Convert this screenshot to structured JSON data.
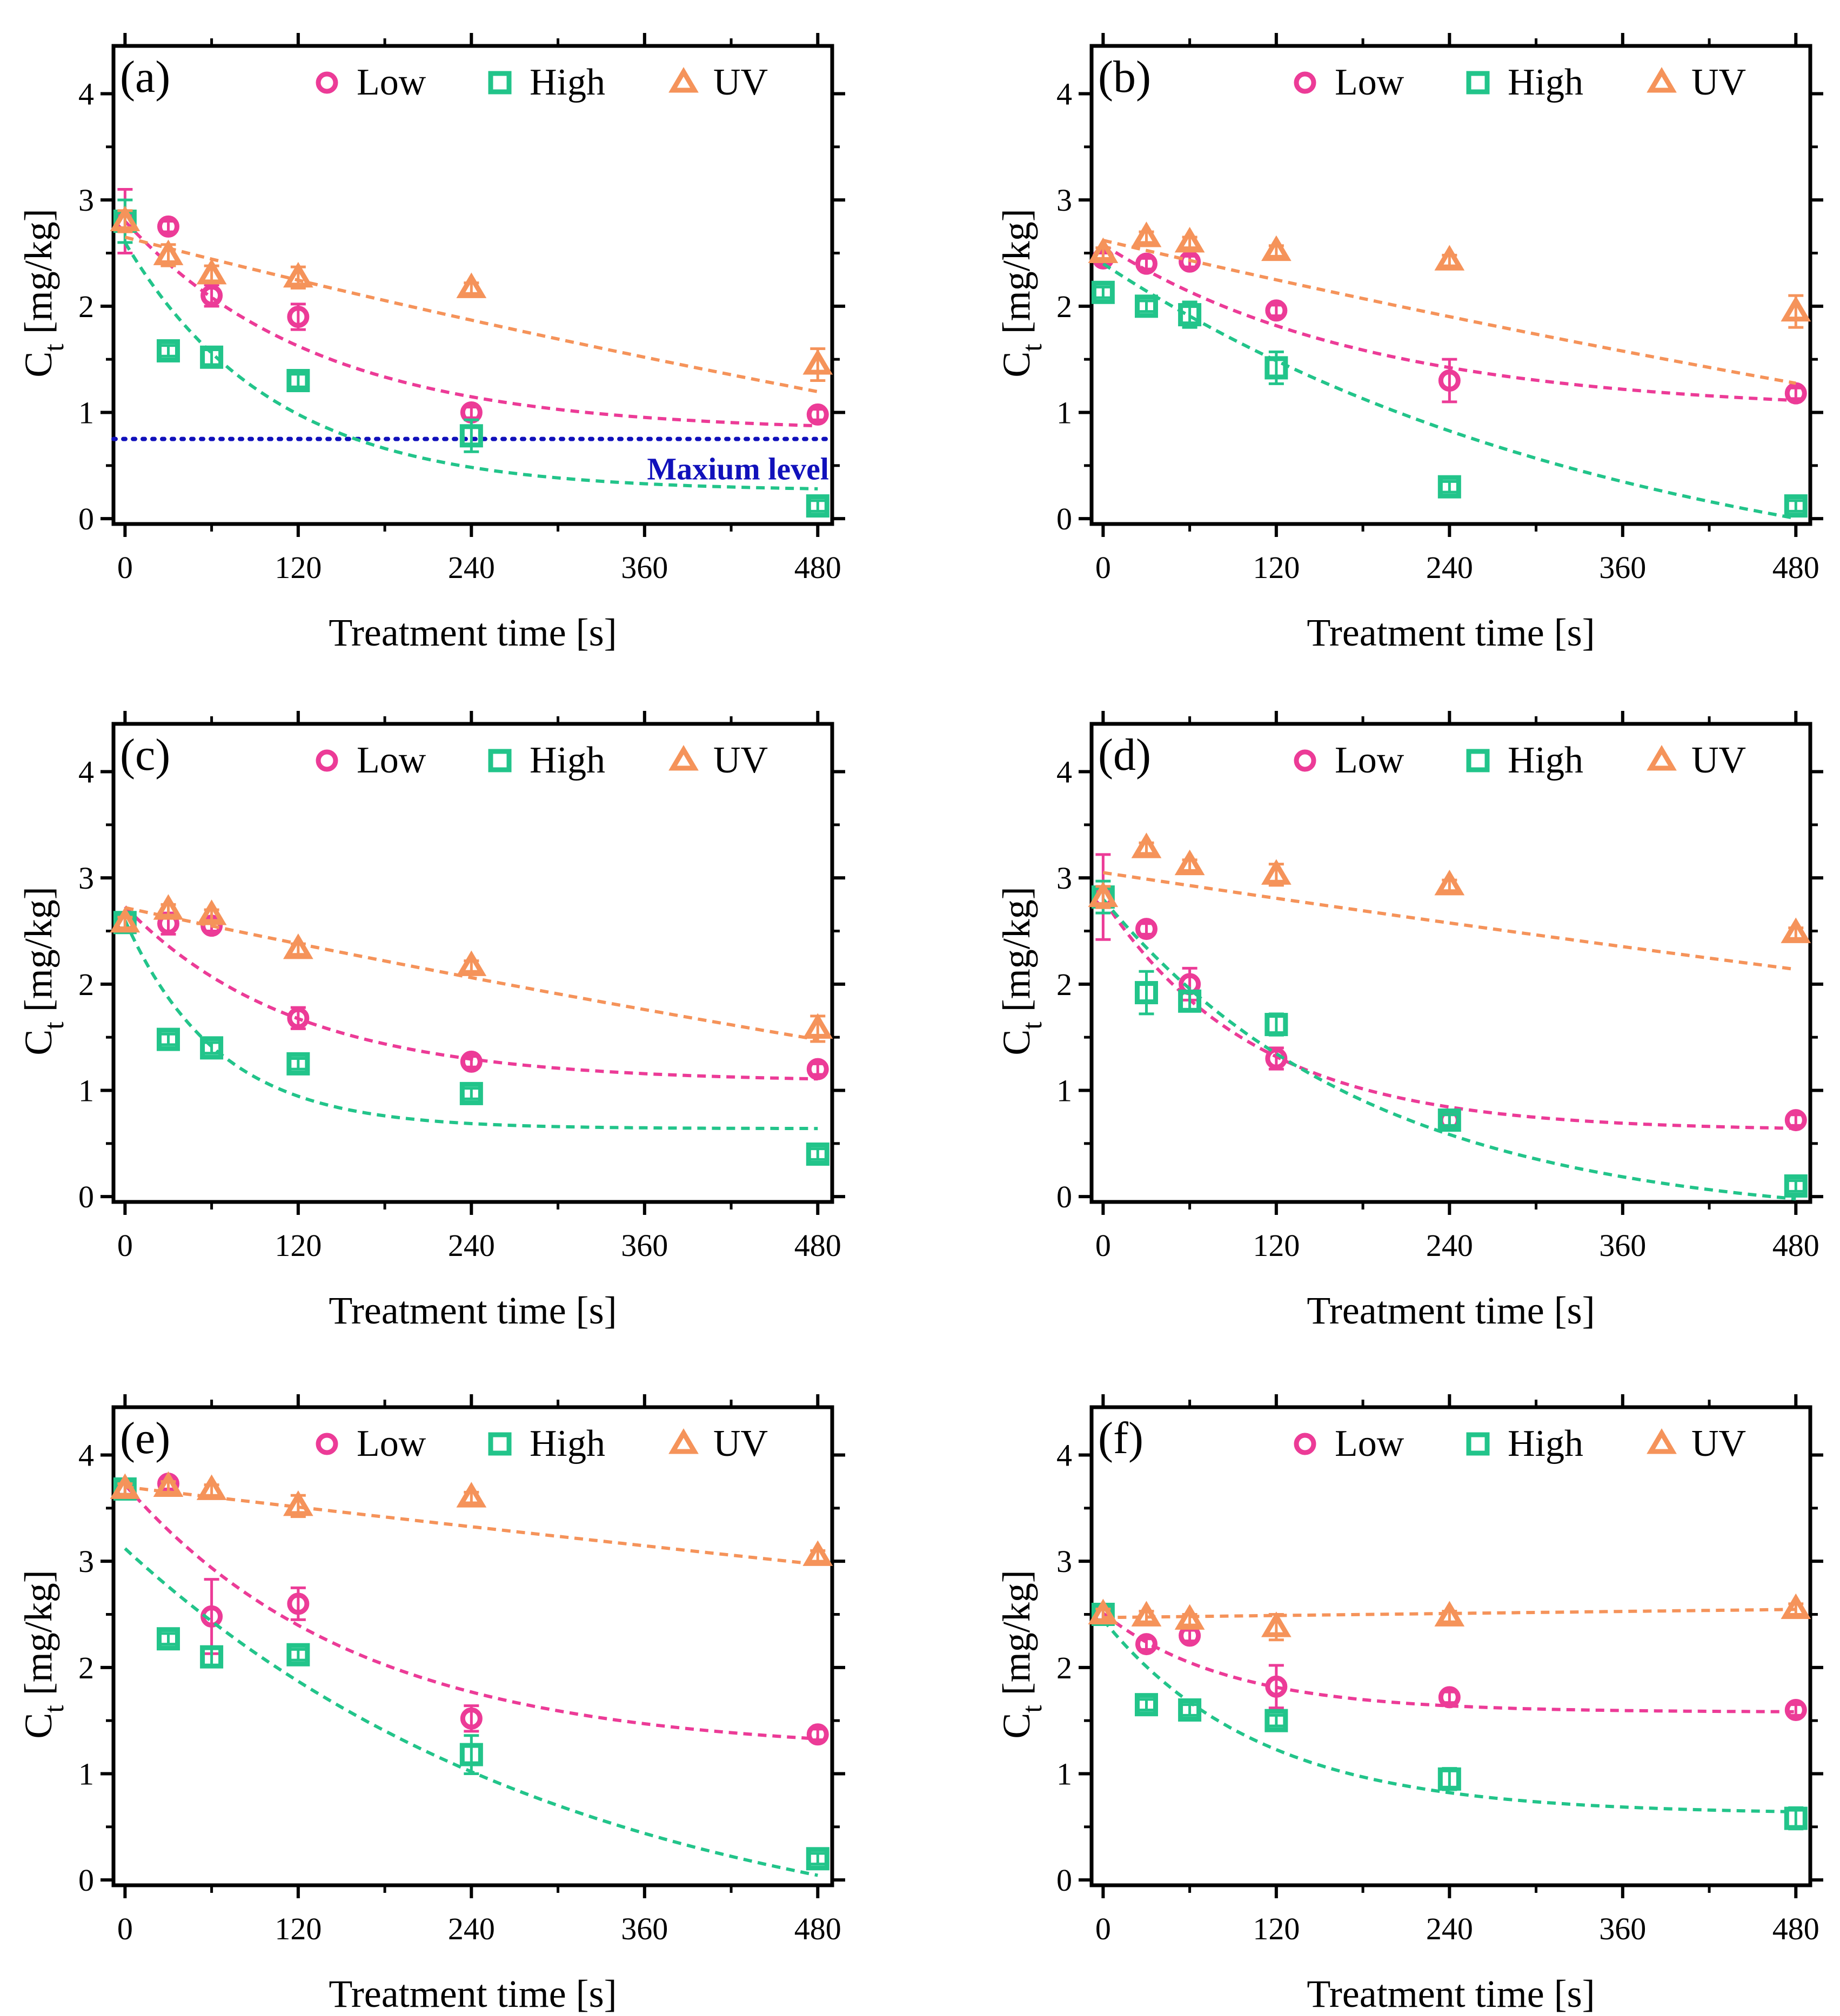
{
  "figure": {
    "colors": {
      "Low": "#ec3b97",
      "High": "#22c48a",
      "UV": "#f5935a",
      "max_level": "#1111bb",
      "axis": "#000000"
    },
    "legend": [
      "Low",
      "High",
      "UV"
    ],
    "icons": {
      "Low": "circle-marker-icon",
      "High": "square-marker-icon",
      "UV": "triangle-marker-icon"
    }
  },
  "chart_data": [
    {
      "type": "scatter",
      "panel": "(a)",
      "xlabel": "Treatment time [s]",
      "ylabel": "C",
      "ylabel_sub": "t",
      "ylabel_unit": " [mg/kg]",
      "xticks": [
        0,
        120,
        240,
        360,
        480
      ],
      "yticks": [
        0,
        1,
        2,
        3,
        4
      ],
      "xlim": [
        -8,
        490
      ],
      "ylim": [
        -0.05,
        4.45
      ],
      "max_level": {
        "label": "Maxium level",
        "y": 0.75
      },
      "series": [
        {
          "name": "Low",
          "marker": "circle",
          "x": [
            0,
            30,
            60,
            120,
            240,
            480
          ],
          "y": [
            2.8,
            2.75,
            2.1,
            1.9,
            1.0,
            0.98
          ],
          "err": [
            0.3,
            0.05,
            0.1,
            0.12,
            0.05,
            0.05
          ],
          "fit": {
            "a": 0.82,
            "b": 1.98,
            "k": 0.0075
          }
        },
        {
          "name": "High",
          "marker": "square",
          "x": [
            0,
            30,
            60,
            120,
            240,
            480
          ],
          "y": [
            2.8,
            1.58,
            1.52,
            1.3,
            0.78,
            0.12
          ],
          "err": [
            0.2,
            0.05,
            0.07,
            0.06,
            0.15,
            0.05
          ],
          "fit": {
            "a": 0.26,
            "b": 2.34,
            "k": 0.0098
          }
        },
        {
          "name": "UV",
          "marker": "triangle",
          "x": [
            0,
            30,
            60,
            120,
            240,
            480
          ],
          "y": [
            2.8,
            2.48,
            2.3,
            2.27,
            2.17,
            1.45
          ],
          "err": [
            0.1,
            0.1,
            0.08,
            0.1,
            0.05,
            0.15
          ],
          "fit": {
            "a": -3.0,
            "b": 5.65,
            "k": 0.00062
          }
        }
      ]
    },
    {
      "type": "scatter",
      "panel": "(b)",
      "xlabel": "Treatment time [s]",
      "ylabel": "C",
      "ylabel_sub": "t",
      "ylabel_unit": " [mg/kg]",
      "xticks": [
        0,
        120,
        240,
        360,
        480
      ],
      "yticks": [
        0,
        1,
        2,
        3,
        4
      ],
      "xlim": [
        -8,
        490
      ],
      "ylim": [
        -0.05,
        4.45
      ],
      "series": [
        {
          "name": "Low",
          "marker": "circle",
          "x": [
            0,
            30,
            60,
            120,
            240,
            480
          ],
          "y": [
            2.45,
            2.4,
            2.42,
            1.96,
            1.3,
            1.18
          ],
          "err": [
            0.05,
            0.05,
            0.05,
            0.05,
            0.2,
            0.05
          ],
          "fit": {
            "a": 1.0,
            "b": 1.58,
            "k": 0.0055
          }
        },
        {
          "name": "High",
          "marker": "square",
          "x": [
            0,
            30,
            60,
            120,
            240,
            480
          ],
          "y": [
            2.13,
            2.0,
            1.92,
            1.42,
            0.3,
            0.12
          ],
          "err": [
            0.05,
            0.05,
            0.12,
            0.15,
            0.05,
            0.05
          ],
          "fit": {
            "a": -0.9,
            "b": 3.3,
            "k": 0.0027
          }
        },
        {
          "name": "UV",
          "marker": "triangle",
          "x": [
            0,
            30,
            60,
            120,
            240,
            480
          ],
          "y": [
            2.5,
            2.65,
            2.6,
            2.52,
            2.43,
            1.95
          ],
          "err": [
            0.05,
            0.05,
            0.05,
            0.05,
            0.05,
            0.15
          ],
          "fit": {
            "a": -3.0,
            "b": 5.62,
            "k": 0.00057
          }
        }
      ]
    },
    {
      "type": "scatter",
      "panel": "(c)",
      "xlabel": "Treatment time [s]",
      "ylabel": "C",
      "ylabel_sub": "t",
      "ylabel_unit": " [mg/kg]",
      "xticks": [
        0,
        120,
        240,
        360,
        480
      ],
      "yticks": [
        0,
        1,
        2,
        3,
        4
      ],
      "xlim": [
        -8,
        490
      ],
      "ylim": [
        -0.05,
        4.45
      ],
      "series": [
        {
          "name": "Low",
          "marker": "circle",
          "x": [
            0,
            30,
            60,
            120,
            240,
            480
          ],
          "y": [
            2.58,
            2.57,
            2.55,
            1.68,
            1.27,
            1.2
          ],
          "err": [
            0.05,
            0.1,
            0.05,
            0.1,
            0.05,
            0.05
          ],
          "fit": {
            "a": 1.08,
            "b": 1.65,
            "k": 0.0085
          }
        },
        {
          "name": "High",
          "marker": "square",
          "x": [
            0,
            30,
            60,
            120,
            240,
            480
          ],
          "y": [
            2.58,
            1.48,
            1.4,
            1.25,
            0.97,
            0.4
          ],
          "err": [
            0.05,
            0.05,
            0.05,
            0.05,
            0.05,
            0.05
          ],
          "fit": {
            "a": 0.64,
            "b": 1.96,
            "k": 0.0155
          }
        },
        {
          "name": "UV",
          "marker": "triangle",
          "x": [
            0,
            30,
            60,
            120,
            240,
            480
          ],
          "y": [
            2.58,
            2.7,
            2.65,
            2.33,
            2.17,
            1.58
          ],
          "err": [
            0.05,
            0.05,
            0.05,
            0.05,
            0.05,
            0.12
          ],
          "fit": {
            "a": -3.0,
            "b": 5.72,
            "k": 0.00051
          }
        }
      ]
    },
    {
      "type": "scatter",
      "panel": "(d)",
      "xlabel": "Treatment time [s]",
      "ylabel": "C",
      "ylabel_sub": "t",
      "ylabel_unit": " [mg/kg]",
      "xticks": [
        0,
        120,
        240,
        360,
        480
      ],
      "yticks": [
        0,
        1,
        2,
        3,
        4
      ],
      "xlim": [
        -8,
        490
      ],
      "ylim": [
        -0.05,
        4.45
      ],
      "series": [
        {
          "name": "Low",
          "marker": "circle",
          "x": [
            0,
            30,
            60,
            120,
            240,
            480
          ],
          "y": [
            2.82,
            2.52,
            2.0,
            1.3,
            0.72,
            0.72
          ],
          "err": [
            0.4,
            0.05,
            0.15,
            0.1,
            0.08,
            0.05
          ],
          "fit": {
            "a": 0.62,
            "b": 2.18,
            "k": 0.0095
          }
        },
        {
          "name": "High",
          "marker": "square",
          "x": [
            0,
            30,
            60,
            120,
            240,
            480
          ],
          "y": [
            2.82,
            1.92,
            1.84,
            1.62,
            0.72,
            0.1
          ],
          "err": [
            0.15,
            0.2,
            0.08,
            0.1,
            0.05,
            0.05
          ],
          "fit": {
            "a": -0.25,
            "b": 3.05,
            "k": 0.0054
          }
        },
        {
          "name": "UV",
          "marker": "triangle",
          "x": [
            0,
            30,
            60,
            120,
            240,
            480
          ],
          "y": [
            2.82,
            3.28,
            3.12,
            3.03,
            2.93,
            2.48
          ],
          "err": [
            0.1,
            0.05,
            0.05,
            0.1,
            0.05,
            0.05
          ],
          "fit": {
            "a": -3.0,
            "b": 6.05,
            "k": 0.00034
          }
        }
      ]
    },
    {
      "type": "scatter",
      "panel": "(e)",
      "xlabel": "Treatment time [s]",
      "ylabel": "C",
      "ylabel_sub": "t",
      "ylabel_unit": " [mg/kg]",
      "xticks": [
        0,
        120,
        240,
        360,
        480
      ],
      "yticks": [
        0,
        1,
        2,
        3,
        4
      ],
      "xlim": [
        -8,
        490
      ],
      "ylim": [
        -0.05,
        4.45
      ],
      "series": [
        {
          "name": "Low",
          "marker": "circle",
          "x": [
            0,
            30,
            60,
            120,
            240,
            480
          ],
          "y": [
            3.68,
            3.73,
            2.48,
            2.6,
            1.52,
            1.37
          ],
          "err": [
            0.05,
            0.05,
            0.35,
            0.15,
            0.12,
            0.05
          ],
          "fit": {
            "a": 1.2,
            "b": 2.52,
            "k": 0.0062
          }
        },
        {
          "name": "High",
          "marker": "square",
          "x": [
            0,
            30,
            60,
            120,
            240,
            480
          ],
          "y": [
            3.68,
            2.27,
            2.1,
            2.12,
            1.18,
            0.2
          ],
          "err": [
            0.05,
            0.05,
            0.08,
            0.05,
            0.18,
            0.05
          ],
          "fit": {
            "a": -0.8,
            "b": 3.92,
            "k": 0.0032
          }
        },
        {
          "name": "UV",
          "marker": "triangle",
          "x": [
            0,
            30,
            60,
            120,
            240,
            480
          ],
          "y": [
            3.68,
            3.7,
            3.67,
            3.52,
            3.6,
            3.05
          ],
          "err": [
            0.05,
            0.05,
            0.05,
            0.1,
            0.05,
            0.05
          ],
          "fit": {
            "a": -3.0,
            "b": 6.7,
            "k": 0.00024
          }
        }
      ]
    },
    {
      "type": "scatter",
      "panel": "(f)",
      "xlabel": "Treatment time [s]",
      "ylabel": "C",
      "ylabel_sub": "t",
      "ylabel_unit": " [mg/kg]",
      "xticks": [
        0,
        120,
        240,
        360,
        480
      ],
      "yticks": [
        0,
        1,
        2,
        3,
        4
      ],
      "xlim": [
        -8,
        490
      ],
      "ylim": [
        -0.05,
        4.45
      ],
      "series": [
        {
          "name": "Low",
          "marker": "circle",
          "x": [
            0,
            30,
            60,
            120,
            240,
            480
          ],
          "y": [
            2.5,
            2.22,
            2.3,
            1.82,
            1.72,
            1.6
          ],
          "err": [
            0.05,
            0.05,
            0.05,
            0.2,
            0.05,
            0.05
          ],
          "fit": {
            "a": 1.58,
            "b": 0.93,
            "k": 0.0115
          }
        },
        {
          "name": "High",
          "marker": "square",
          "x": [
            0,
            30,
            60,
            120,
            240,
            480
          ],
          "y": [
            2.5,
            1.65,
            1.6,
            1.5,
            0.95,
            0.58
          ],
          "err": [
            0.05,
            0.05,
            0.05,
            0.05,
            0.1,
            0.1
          ],
          "fit": {
            "a": 0.62,
            "b": 1.83,
            "k": 0.0092
          }
        },
        {
          "name": "UV",
          "marker": "triangle",
          "x": [
            0,
            30,
            60,
            120,
            240,
            480
          ],
          "y": [
            2.5,
            2.48,
            2.45,
            2.38,
            2.48,
            2.55
          ],
          "err": [
            0.05,
            0.05,
            0.05,
            0.12,
            0.05,
            0.05
          ],
          "fit": {
            "a": 2.47,
            "b": 0,
            "k": 0,
            "slope": 0.00016
          }
        }
      ]
    }
  ]
}
